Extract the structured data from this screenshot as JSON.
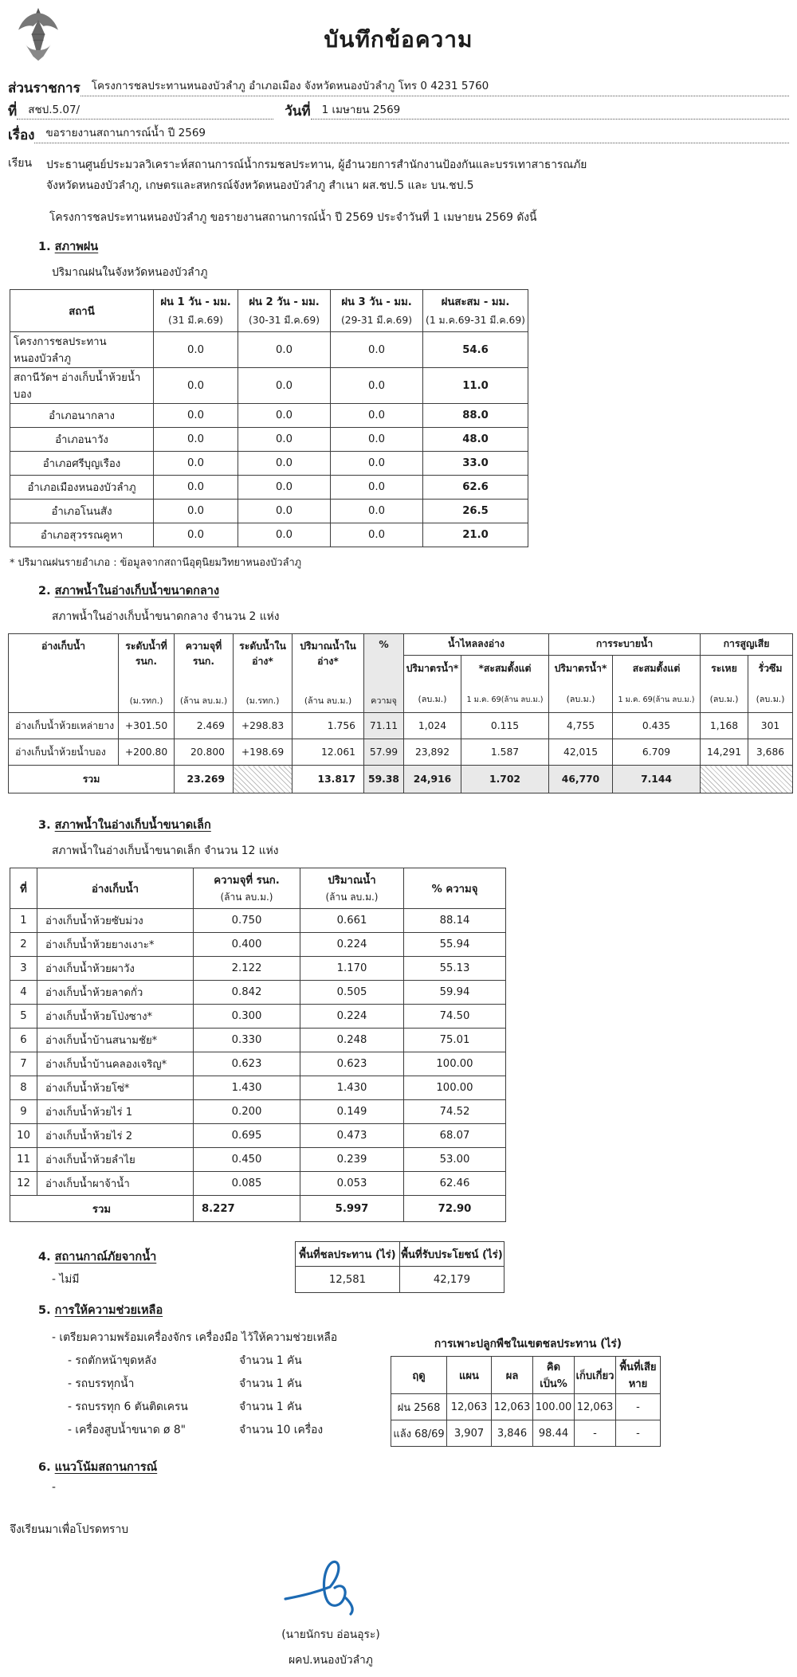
{
  "doc": {
    "title": "บันทึกข้อความ",
    "agency_label": "ส่วนราชการ",
    "agency_value": "โครงการชลประทานหนองบัวลำภู อำเภอเมือง จังหวัดหนองบัวลำภู โทร 0 4231 5760",
    "no_label": "ที่",
    "no_value": "สชป.5.07/",
    "date_label": "วันที่",
    "date_value": "1 เมษายน 2569",
    "subject_label": "เรื่อง",
    "subject_value": "ขอรายงานสถานการณ์น้ำ ปี 2569",
    "to_label": "เรียน",
    "to_line1": "ประธานศูนย์ประมวลวิเคราะห์สถานการณ์น้ำกรมชลประทาน, ผู้อำนวยการสำนักงานป้องกันและบรรเทาสาธารณภัย",
    "to_line2": "จังหวัดหนองบัวลำภู, เกษตรและสหกรณ์จังหวัดหนองบัวลำภู  สำเนา ผส.ชป.5 และ บน.ชป.5",
    "intro": "โครงการชลประทานหนองบัวลำภู ขอรายงานสถานการณ์น้ำ ปี 2569  ประจำวันที่ 1 เมษายน 2569  ดังนี้"
  },
  "section1": {
    "num": "1.",
    "title": "สภาพฝน",
    "sub": "ปริมาณฝนในจังหวัดหนองบัวลำภู",
    "rain_table": {
      "headers": [
        {
          "label": "สถานี",
          "unit": ""
        },
        {
          "label": "ฝน 1 วัน - มม.",
          "unit": "(31 มี.ค.69)"
        },
        {
          "label": "ฝน 2 วัน - มม.",
          "unit": "(30-31 มี.ค.69)"
        },
        {
          "label": "ฝน 3 วัน - มม.",
          "unit": "(29-31 มี.ค.69)"
        },
        {
          "label": "ฝนสะสม - มม.",
          "unit": "(1 ม.ค.69-31 มี.ค.69)"
        }
      ],
      "rows": [
        {
          "cls": "ln",
          "cells": [
            "โครงการชลประทานหนองบัวลำภู",
            "0.0",
            "0.0",
            "0.0",
            "54.6"
          ]
        },
        {
          "cls": "ln",
          "cells": [
            "สถานีวัดฯ อ่างเก็บน้ำห้วยน้ำบอง",
            "0.0",
            "0.0",
            "0.0",
            "11.0"
          ]
        },
        {
          "cells": [
            "อำเภอนากลาง",
            "0.0",
            "0.0",
            "0.0",
            "88.0"
          ]
        },
        {
          "cells": [
            "อำเภอนาวัง",
            "0.0",
            "0.0",
            "0.0",
            "48.0"
          ]
        },
        {
          "cells": [
            "อำเภอศรีบุญเรือง",
            "0.0",
            "0.0",
            "0.0",
            "33.0"
          ]
        },
        {
          "cells": [
            "อำเภอเมืองหนองบัวลำภู",
            "0.0",
            "0.0",
            "0.0",
            "62.6"
          ]
        },
        {
          "cells": [
            "อำเภอโนนสัง",
            "0.0",
            "0.0",
            "0.0",
            "26.5"
          ]
        },
        {
          "cells": [
            "อำเภอสุวรรณคูหา",
            "0.0",
            "0.0",
            "0.0",
            "21.0"
          ]
        }
      ]
    },
    "footnote": "* ปริมาณฝนรายอำเภอ : ข้อมูลจากสถานีอุตุนิยมวิทยาหนองบัวลำภู"
  },
  "section2": {
    "num": "2.",
    "title": "สภาพน้ำในอ่างเก็บน้ำขนาดกลาง",
    "sub": "สภาพน้ำในอ่างเก็บน้ำขนาดกลาง จำนวน  2  แห่ง",
    "table": {
      "col_headers": [
        {
          "label": "อ่างเก็บน้ำ",
          "unit": ""
        },
        {
          "label": "ระดับน้ำที่ รนก.",
          "unit": "(ม.รทก.)"
        },
        {
          "label": "ความจุที่ รนก.",
          "unit": "(ล้าน ลบ.ม.)"
        },
        {
          "label": "ระดับน้ำในอ่าง*",
          "unit": "(ม.รทก.)"
        },
        {
          "label": "ปริมาณน้ำในอ่าง*",
          "unit": "(ล้าน ลบ.ม.)"
        },
        {
          "label": "%",
          "unit": "ความจุ"
        }
      ],
      "groups": [
        {
          "label": "น้ำไหลลงอ่าง",
          "subs": [
            {
              "label": "ปริมาตรน้ำ*",
              "unit": "(ลบ.ม.)"
            },
            {
              "label": "*สะสมตั้งแต่",
              "unit": "1 ม.ค. 69(ล้าน ลบ.ม.)"
            }
          ]
        },
        {
          "label": "การระบายน้ำ",
          "subs": [
            {
              "label": "ปริมาตรน้ำ*",
              "unit": "(ลบ.ม.)"
            },
            {
              "label": "สะสมตั้งแต่",
              "unit": "1 ม.ค. 69(ล้าน ลบ.ม.)"
            }
          ]
        },
        {
          "label": "การสูญเสีย",
          "subs": [
            {
              "label": "ระเหย",
              "unit": "(ลบ.ม.)"
            },
            {
              "label": "รั่วซึม",
              "unit": "(ลบ.ม.)"
            }
          ]
        }
      ],
      "rows": [
        {
          "cells": [
            "อ่างเก็บน้ำห้วยเหล่ายาง",
            "+301.50",
            "2.469",
            "+298.83",
            "1.756",
            "71.11",
            "1,024",
            "0.115",
            "4,755",
            "0.435",
            "1,168",
            "301"
          ]
        },
        {
          "cells": [
            "อ่างเก็บน้ำห้วยน้ำบอง",
            "+200.80",
            "20.800",
            "+198.69",
            "12.061",
            "57.99",
            "23,892",
            "1.587",
            "42,015",
            "6.709",
            "14,291",
            "3,686"
          ]
        }
      ],
      "total": {
        "label": "รวม",
        "capacity": "23.269",
        "volume": "13.817",
        "pct": "59.38",
        "inflow": "24,916",
        "inflow_accum": "1.702",
        "discharge": "46,770",
        "discharge_accum": "7.144"
      }
    }
  },
  "section3": {
    "num": "3.",
    "title": "สภาพน้ำในอ่างเก็บน้ำขนาดเล็ก",
    "sub": "สภาพน้ำในอ่างเก็บน้ำขนาดเล็ก จำนวน  12  แห่ง",
    "table": {
      "headers": [
        {
          "label": "ที่",
          "unit": ""
        },
        {
          "label": "อ่างเก็บน้ำ",
          "unit": ""
        },
        {
          "label": "ความจุที่ รนก.",
          "unit": "(ล้าน ลบ.ม.)"
        },
        {
          "label": "ปริมาณน้ำ",
          "unit": "(ล้าน ลบ.ม.)"
        },
        {
          "label": "% ความจุ",
          "unit": ""
        }
      ],
      "rows": [
        {
          "cells": [
            "1",
            "อ่างเก็บน้ำห้วยซับม่วง",
            "0.750",
            "0.661",
            "88.14"
          ]
        },
        {
          "cells": [
            "2",
            "อ่างเก็บน้ำห้วยยางเงาะ*",
            "0.400",
            "0.224",
            "55.94"
          ]
        },
        {
          "cells": [
            "3",
            "อ่างเก็บน้ำห้วยผาวัง",
            "2.122",
            "1.170",
            "55.13"
          ]
        },
        {
          "cells": [
            "4",
            "อ่างเก็บน้ำห้วยลาดกั่ว",
            "0.842",
            "0.505",
            "59.94"
          ]
        },
        {
          "cells": [
            "5",
            "อ่างเก็บน้ำห้วยโป่งซาง*",
            "0.300",
            "0.224",
            "74.50"
          ]
        },
        {
          "cells": [
            "6",
            "อ่างเก็บน้ำบ้านสนามชัย*",
            "0.330",
            "0.248",
            "75.01"
          ]
        },
        {
          "cells": [
            "7",
            "อ่างเก็บน้ำบ้านคลองเจริญ*",
            "0.623",
            "0.623",
            "100.00"
          ]
        },
        {
          "cells": [
            "8",
            "อ่างเก็บน้ำห้วยโซ่*",
            "1.430",
            "1.430",
            "100.00"
          ]
        },
        {
          "cells": [
            "9",
            "อ่างเก็บน้ำห้วยไร่ 1",
            "0.200",
            "0.149",
            "74.52"
          ]
        },
        {
          "cells": [
            "10",
            "อ่างเก็บน้ำห้วยไร่ 2",
            "0.695",
            "0.473",
            "68.07"
          ]
        },
        {
          "cells": [
            "11",
            "อ่างเก็บน้ำห้วยลำไย",
            "0.450",
            "0.239",
            "53.00"
          ]
        },
        {
          "cells": [
            "12",
            "อ่างเก็บน้ำผาจ้าน้ำ",
            "0.085",
            "0.053",
            "62.46"
          ]
        }
      ],
      "total": {
        "label": "รวม",
        "capacity": "8.227",
        "volume": "5.997",
        "pct": "72.90"
      }
    }
  },
  "section4": {
    "num": "4.",
    "title": "สถานกาณ์ภัยจากน้ำ",
    "item": "- ไม่มี",
    "area_table": {
      "headers": [
        "พื้นที่ชลประทาน (ไร่)",
        "พื้นที่รับประโยชน์ (ไร่)"
      ],
      "values": [
        "12,581",
        "42,179"
      ]
    }
  },
  "section5": {
    "num": "5.",
    "title": "การให้ความช่วยเหลือ",
    "intro_item": "- เตรียมความพร้อมเครื่องจักร เครื่องมือ ไว้ให้ความช่วยเหลือ",
    "equipment": [
      {
        "name": "- รถตักหน้าขุดหลัง",
        "qty": "จำนวน 1 คัน"
      },
      {
        "name": "- รถบรรทุกน้ำ",
        "qty": "จำนวน 1 คัน"
      },
      {
        "name": "- รถบรรทุก 6 ตันติดเครน",
        "qty": "จำนวน 1 คัน"
      },
      {
        "name": "- เครื่องสูบน้ำขนาด ø 8\"",
        "qty": "จำนวน 10 เครื่อง"
      }
    ],
    "planting": {
      "title": "การเพาะปลูกพืชในเขตชลประทาน (ไร่)",
      "headers": [
        "ฤดู",
        "แผน",
        "ผล",
        "คิดเป็น%",
        "เก็บเกี่ยว",
        "พื้นที่เสียหาย"
      ],
      "rows": [
        {
          "cells": [
            "ฝน 2568",
            "12,063",
            "12,063",
            "100.00",
            "12,063",
            "-"
          ]
        },
        {
          "cells": [
            "แล้ง 68/69",
            "3,907",
            "3,846",
            "98.44",
            "-",
            "-"
          ]
        }
      ]
    }
  },
  "section6": {
    "num": "6.",
    "title": "แนวโน้มสถานการณ์",
    "item": "-"
  },
  "closing": "จึงเรียนมาเพื่อโปรดทราบ",
  "signature": {
    "name": "(นายนักรบ  อ่อนอุระ)",
    "position": "ผคป.หนองบัวลำภู",
    "ink_color": "#1c6ab3"
  }
}
